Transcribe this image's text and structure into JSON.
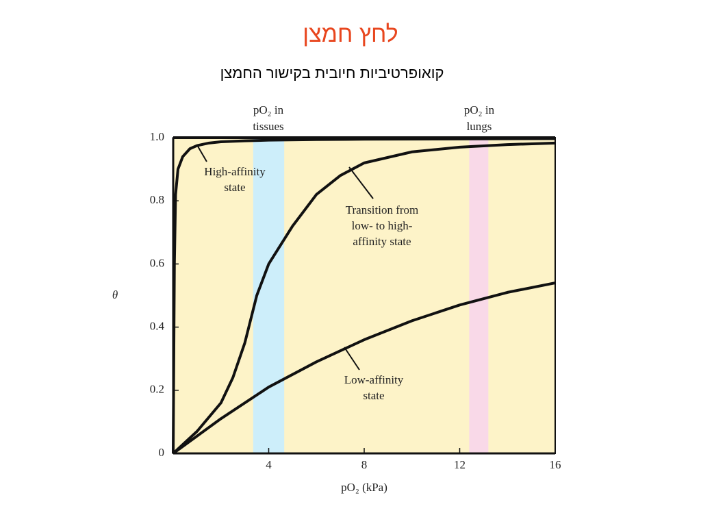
{
  "title": "לחץ חמצן",
  "subtitle": "קואופרטיביות חיובית בקישור החמצן",
  "chart_data": {
    "type": "line",
    "x_label": "pO₂ (kPa)",
    "y_label": "θ",
    "xlim": [
      0,
      16
    ],
    "xticks": [
      4,
      8,
      12,
      16
    ],
    "ylim": [
      0,
      1
    ],
    "yticks": [
      0,
      0.2,
      0.4,
      0.6,
      0.8,
      {
        "value": 1,
        "label": "1.0"
      }
    ],
    "background": "#fdf3c8",
    "bands": [
      {
        "label_lines": [
          "pO₂ in",
          "tissues"
        ],
        "xlim": [
          3.35,
          4.65
        ],
        "color": "#cdeefa"
      },
      {
        "label_lines": [
          "pO₂ in",
          "lungs"
        ],
        "xlim": [
          12.4,
          13.2
        ],
        "color": "#f9d9e8"
      }
    ],
    "series": [
      {
        "label_lines": [
          "High-affinity",
          "state"
        ],
        "color": "#111111",
        "x": [
          0,
          0.05,
          0.1,
          0.2,
          0.4,
          0.7,
          1,
          1.5,
          2,
          3,
          4,
          6,
          8,
          12,
          16
        ],
        "values": [
          0,
          0.6,
          0.82,
          0.9,
          0.94,
          0.965,
          0.975,
          0.983,
          0.987,
          0.99,
          0.992,
          0.994,
          0.995,
          0.996,
          0.997
        ]
      },
      {
        "label_lines": [
          "Transition from",
          "low- to high-",
          "affinity state"
        ],
        "color": "#111111",
        "x": [
          0,
          1,
          2,
          2.5,
          3,
          3.5,
          4,
          5,
          6,
          7,
          8,
          10,
          12,
          14,
          16
        ],
        "values": [
          0,
          0.07,
          0.16,
          0.24,
          0.35,
          0.5,
          0.6,
          0.72,
          0.82,
          0.88,
          0.92,
          0.955,
          0.97,
          0.978,
          0.983
        ]
      },
      {
        "label_lines": [
          "Low-affinity",
          "state"
        ],
        "color": "#111111",
        "x": [
          0,
          2,
          4,
          6,
          8,
          10,
          12,
          14,
          16
        ],
        "values": [
          0,
          0.11,
          0.21,
          0.29,
          0.36,
          0.42,
          0.47,
          0.51,
          0.54
        ]
      }
    ]
  }
}
